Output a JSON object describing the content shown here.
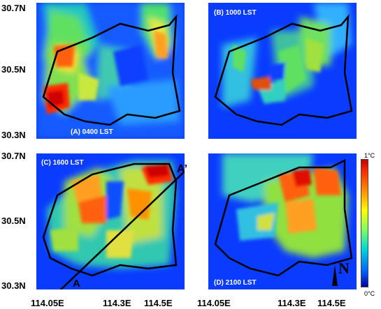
{
  "panels": [
    {
      "label": "(A) 0400 LST"
    },
    {
      "label": "(B) 1000 LST"
    },
    {
      "label": "(C) 1600 LST"
    },
    {
      "label": "(D) 2100 LST"
    }
  ],
  "latitude_labels": {
    "top": "30.7N",
    "mid": "30.5N",
    "bottom": "30.3N"
  },
  "longitude_labels": [
    "114.05E",
    "114.3E",
    "114.5E"
  ],
  "colorbar": {
    "max_label": "1°C",
    "min_label": "0°C",
    "colors": [
      "#c00000",
      "#ff9000",
      "#ffff00",
      "#80ff60",
      "#00d8d8",
      "#0060ff",
      "#0000a0"
    ]
  },
  "cross_section": {
    "start": "A",
    "end": "A’"
  },
  "north_arrow": {
    "letter": "N"
  }
}
